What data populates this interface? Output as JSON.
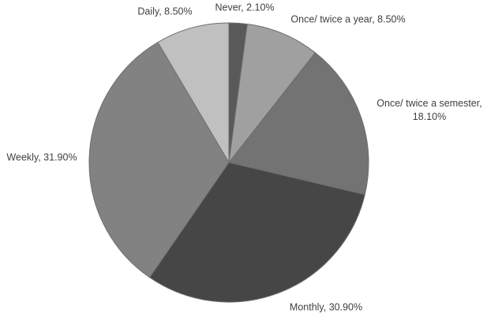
{
  "chart_data": {
    "type": "pie",
    "direction": "clockwise",
    "start_angle_deg": -90,
    "legend": "none",
    "labels_position": "outside-end",
    "labels_text_color": "#404040",
    "stroke_color": "#6e6e6e",
    "background_color": "#ffffff",
    "slices": [
      {
        "label": "Never",
        "value": 2.1,
        "display": "Never, 2.10%",
        "color": "#595959"
      },
      {
        "label": "Once/ twice a year",
        "value": 8.5,
        "display": "Once/ twice a year, 8.50%",
        "color": "#a0a0a0"
      },
      {
        "label": "Once/ twice a semester",
        "value": 18.1,
        "display": "Once/ twice a semester, 18.10%",
        "color": "#737373"
      },
      {
        "label": "Monthly",
        "value": 30.9,
        "display": "Monthly, 30.90%",
        "color": "#464646"
      },
      {
        "label": "Weekly",
        "value": 31.9,
        "display": "Weekly, 31.90%",
        "color": "#828282"
      },
      {
        "label": "Daily",
        "value": 8.5,
        "display": "Daily, 8.50%",
        "color": "#c0c0c0"
      }
    ]
  }
}
